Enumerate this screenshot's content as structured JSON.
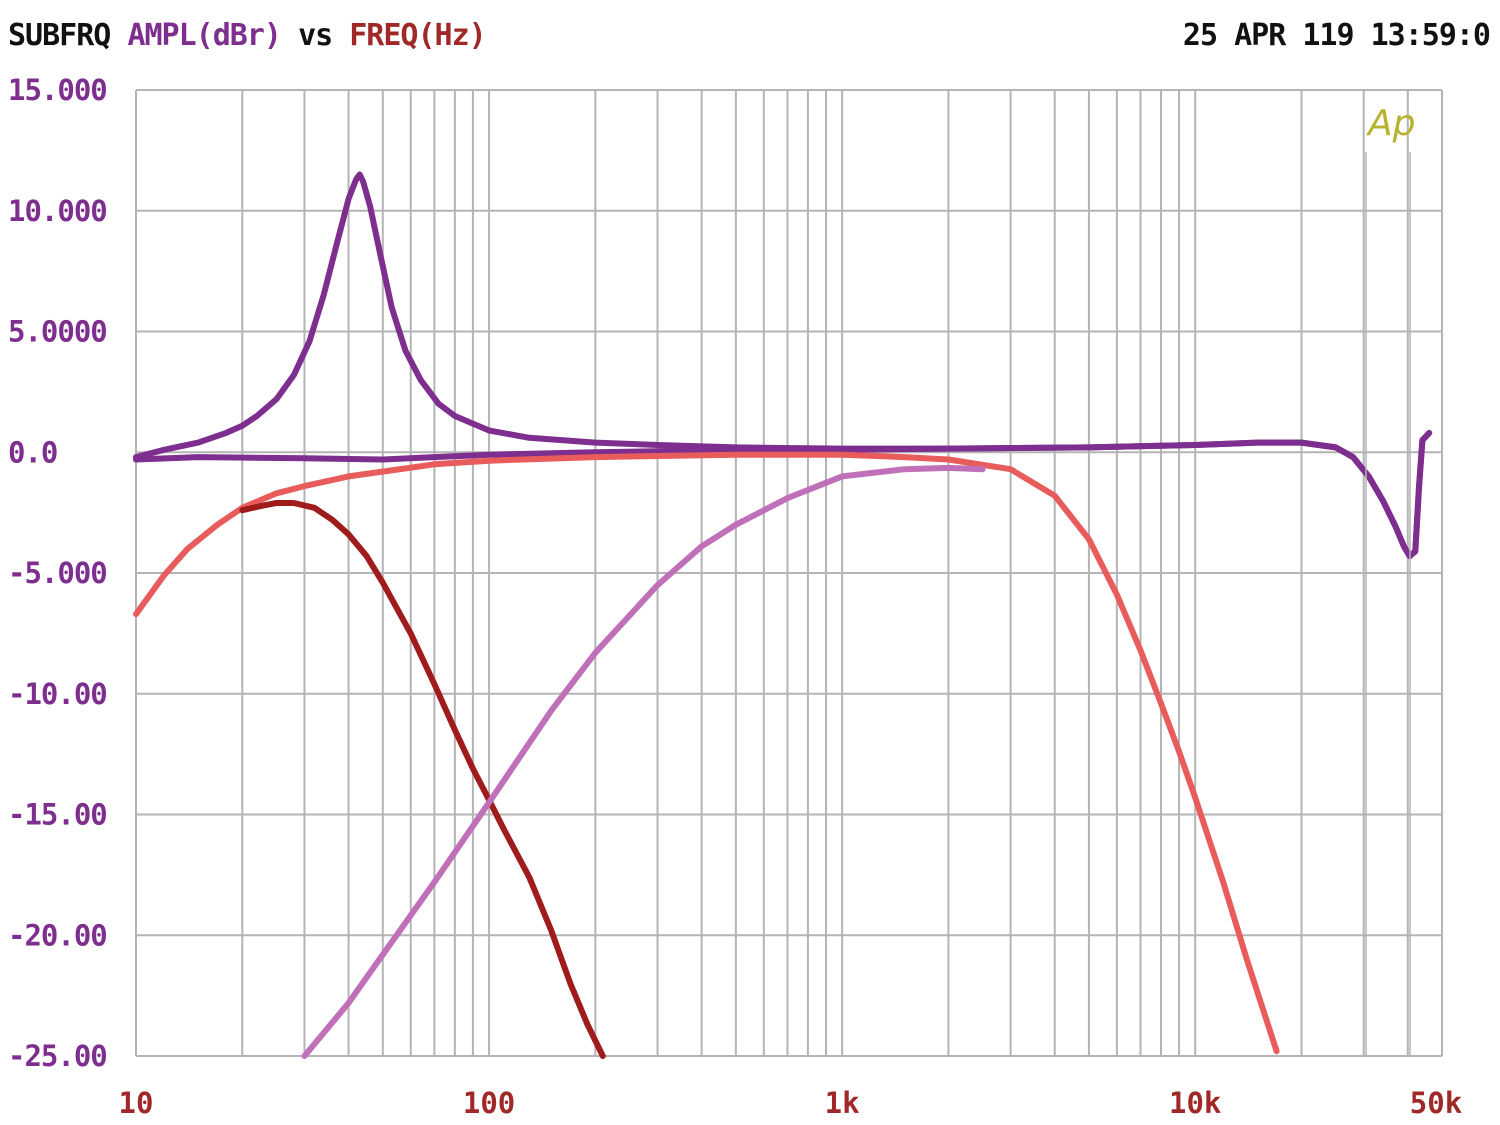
{
  "header": {
    "title_prefix": "SUBFRQ",
    "ylabel": "AMPL(dBr)",
    "vs": "vs",
    "xlabel": "FREQ(Hz)",
    "timestamp": "25 APR 119 13:59:0"
  },
  "logo": "Ap",
  "colors": {
    "background": "#ffffff",
    "grid": "#b4b4b4",
    "prefix_text": "#111111",
    "ylabel_text": "#7e2e8e",
    "xlabel_text": "#a02828",
    "logo": "#b7b32e"
  },
  "chart_data": {
    "type": "line",
    "title": "SUBFRQ AMPL(dBr) vs FREQ(Hz)",
    "xlabel": "FREQ(Hz)",
    "ylabel": "AMPL(dBr)",
    "x_scale": "log",
    "xlim": [
      10,
      50000
    ],
    "ylim": [
      -25,
      15
    ],
    "grid": true,
    "x_tick_labels": [
      "10",
      "100",
      "1k",
      "10k",
      "50k"
    ],
    "x_tick_values": [
      10,
      100,
      1000,
      10000,
      50000
    ],
    "y_tick_labels": [
      "15.000",
      "10.000",
      "5.0000",
      "0.0",
      "-5.000",
      "-10.00",
      "-15.00",
      "-20.00",
      "-25.00"
    ],
    "y_tick_values": [
      15,
      10,
      5,
      0,
      -5,
      -10,
      -15,
      -20,
      -25
    ],
    "series": [
      {
        "color": "#7e2e8e",
        "points": [
          [
            10,
            -0.2
          ],
          [
            12,
            0.1
          ],
          [
            15,
            0.4
          ],
          [
            18,
            0.8
          ],
          [
            20,
            1.1
          ],
          [
            22,
            1.5
          ],
          [
            25,
            2.2
          ],
          [
            28,
            3.2
          ],
          [
            31,
            4.6
          ],
          [
            34,
            6.5
          ],
          [
            37,
            8.6
          ],
          [
            40,
            10.5
          ],
          [
            42,
            11.3
          ],
          [
            43,
            11.5
          ],
          [
            44,
            11.2
          ],
          [
            46,
            10.2
          ],
          [
            49,
            8.3
          ],
          [
            53,
            6.0
          ],
          [
            58,
            4.2
          ],
          [
            64,
            3.0
          ],
          [
            72,
            2.0
          ],
          [
            80,
            1.5
          ],
          [
            100,
            0.9
          ],
          [
            130,
            0.6
          ],
          [
            200,
            0.4
          ],
          [
            300,
            0.3
          ],
          [
            500,
            0.2
          ],
          [
            1000,
            0.15
          ],
          [
            2000,
            0.15
          ],
          [
            5000,
            0.2
          ],
          [
            10000,
            0.3
          ],
          [
            15000,
            0.4
          ],
          [
            20000,
            0.4
          ],
          [
            25000,
            0.2
          ],
          [
            28000,
            -0.2
          ],
          [
            31000,
            -1.0
          ],
          [
            34000,
            -2.0
          ],
          [
            37000,
            -3.1
          ],
          [
            39000,
            -3.9
          ],
          [
            40500,
            -4.3
          ],
          [
            42000,
            -4.1
          ],
          [
            43000,
            -1.5
          ],
          [
            44000,
            0.5
          ],
          [
            46000,
            0.8
          ]
        ]
      },
      {
        "color": "#7e2e8e",
        "points": [
          [
            10,
            -0.3
          ],
          [
            15,
            -0.2
          ],
          [
            30,
            -0.25
          ],
          [
            50,
            -0.3
          ],
          [
            70,
            -0.2
          ],
          [
            100,
            -0.1
          ],
          [
            200,
            0.0
          ],
          [
            500,
            0.1
          ],
          [
            1000,
            0.1
          ],
          [
            2000,
            0.15
          ],
          [
            5000,
            0.2
          ],
          [
            10000,
            0.3
          ],
          [
            15000,
            0.4
          ],
          [
            20000,
            0.4
          ],
          [
            25000,
            0.2
          ],
          [
            28000,
            -0.2
          ],
          [
            31000,
            -1.0
          ],
          [
            34000,
            -2.0
          ],
          [
            37000,
            -3.1
          ],
          [
            39000,
            -3.9
          ],
          [
            40500,
            -4.3
          ],
          [
            42000,
            -4.1
          ],
          [
            43000,
            -1.5
          ],
          [
            44000,
            0.5
          ],
          [
            46000,
            0.8
          ]
        ]
      },
      {
        "color": "#e85c5c",
        "points": [
          [
            10,
            -6.7
          ],
          [
            12,
            -5.1
          ],
          [
            14,
            -4.0
          ],
          [
            17,
            -3.0
          ],
          [
            20,
            -2.3
          ],
          [
            25,
            -1.7
          ],
          [
            30,
            -1.4
          ],
          [
            40,
            -1.0
          ],
          [
            50,
            -0.8
          ],
          [
            70,
            -0.5
          ],
          [
            100,
            -0.35
          ],
          [
            200,
            -0.2
          ],
          [
            500,
            -0.1
          ],
          [
            1000,
            -0.1
          ],
          [
            1500,
            -0.2
          ],
          [
            2000,
            -0.3
          ],
          [
            3000,
            -0.7
          ],
          [
            4000,
            -1.8
          ],
          [
            5000,
            -3.6
          ],
          [
            6000,
            -5.9
          ],
          [
            7000,
            -8.2
          ],
          [
            8000,
            -10.4
          ],
          [
            9000,
            -12.4
          ],
          [
            10000,
            -14.3
          ],
          [
            12000,
            -17.8
          ],
          [
            14000,
            -21.0
          ],
          [
            17000,
            -24.8
          ]
        ]
      },
      {
        "color": "#a01c1c",
        "points": [
          [
            20,
            -2.4
          ],
          [
            23,
            -2.2
          ],
          [
            25,
            -2.1
          ],
          [
            28,
            -2.1
          ],
          [
            32,
            -2.3
          ],
          [
            36,
            -2.8
          ],
          [
            40,
            -3.4
          ],
          [
            45,
            -4.3
          ],
          [
            50,
            -5.4
          ],
          [
            60,
            -7.5
          ],
          [
            70,
            -9.6
          ],
          [
            80,
            -11.5
          ],
          [
            90,
            -13.1
          ],
          [
            100,
            -14.4
          ],
          [
            110,
            -15.6
          ],
          [
            130,
            -17.6
          ],
          [
            150,
            -19.8
          ],
          [
            170,
            -22.0
          ],
          [
            190,
            -23.7
          ],
          [
            210,
            -25.0
          ]
        ]
      },
      {
        "color": "#c070b8",
        "points": [
          [
            30,
            -25.0
          ],
          [
            40,
            -22.8
          ],
          [
            50,
            -20.8
          ],
          [
            70,
            -17.8
          ],
          [
            100,
            -14.5
          ],
          [
            150,
            -10.7
          ],
          [
            200,
            -8.3
          ],
          [
            300,
            -5.5
          ],
          [
            400,
            -3.9
          ],
          [
            500,
            -3.0
          ],
          [
            700,
            -1.9
          ],
          [
            1000,
            -1.0
          ],
          [
            1500,
            -0.7
          ],
          [
            2000,
            -0.65
          ],
          [
            2500,
            -0.7
          ]
        ]
      }
    ]
  }
}
